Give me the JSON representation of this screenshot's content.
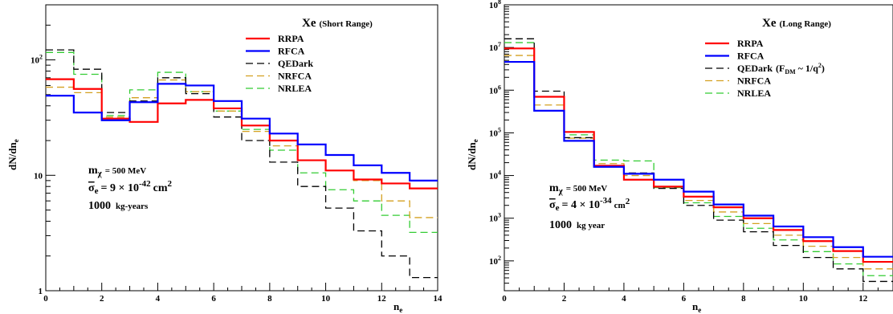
{
  "chart_data": [
    {
      "type": "line",
      "title": "Xe",
      "title_suffix": "(Short Range)",
      "xlabel": "n",
      "xlabel_sub": "e",
      "ylabel": "dN/dn",
      "ylabel_sub": "e",
      "xlim": [
        0,
        14
      ],
      "ylim": [
        1,
        300
      ],
      "yscale": "log",
      "x_ticks": [
        0,
        2,
        4,
        6,
        8,
        10,
        12,
        14
      ],
      "y_ticks": [
        {
          "value": 1,
          "base": "1",
          "exp": ""
        },
        {
          "value": 10,
          "base": "10",
          "exp": ""
        },
        {
          "value": 100,
          "base": "10",
          "exp": "2"
        }
      ],
      "legend_position": "top-right",
      "annotation": {
        "mass_label": "m",
        "mass_sub": "χ",
        "mass_value": "= 500 MeV",
        "sigma_label": "σ",
        "sigma_sub": "e",
        "sigma_value": "= 9 × 10",
        "sigma_exp": "-42",
        "sigma_unit": "cm",
        "sigma_unit_exp": "2",
        "exposure": "1000",
        "exposure_unit": "kg-years"
      },
      "edges": [
        0,
        1,
        2,
        3,
        4,
        5,
        6,
        7,
        8,
        9,
        10,
        11,
        12,
        13,
        14
      ],
      "series": [
        {
          "name": "RRPA",
          "color": "#ff0000",
          "dash": "",
          "width": 2.2,
          "values": [
            68,
            56,
            31,
            29,
            42,
            45,
            38,
            27,
            20,
            13.5,
            11,
            9.2,
            8.5,
            7.7
          ]
        },
        {
          "name": "RFCA",
          "color": "#0000ff",
          "dash": "",
          "width": 2.2,
          "values": [
            49,
            35,
            30,
            43,
            62,
            60,
            44,
            31,
            23,
            18.5,
            15,
            12.2,
            10.5,
            9
          ]
        },
        {
          "name": "QEDark",
          "color": "#000000",
          "dash": "9,5",
          "width": 1.3,
          "values": [
            122,
            83,
            35,
            44,
            70,
            51,
            32,
            20,
            13,
            8,
            5.2,
            3.3,
            2,
            1.3
          ]
        },
        {
          "name": "NRFCA",
          "color": "#d4a020",
          "dash": "9,5",
          "width": 1.3,
          "values": [
            58,
            52,
            32,
            47,
            67,
            53,
            36,
            24,
            18,
            13.5,
            11,
            9,
            6,
            4.3
          ]
        },
        {
          "name": "NRLEA",
          "color": "#33cc33",
          "dash": "9,5",
          "width": 1.3,
          "values": [
            116,
            75,
            33,
            55,
            78,
            53,
            36,
            25,
            16.5,
            10.5,
            7.5,
            6,
            4.5,
            3.2
          ]
        }
      ]
    },
    {
      "type": "line",
      "title": "Xe",
      "title_suffix": "(Long Range)",
      "xlabel": "n",
      "xlabel_sub": "e",
      "ylabel": "dN/dn",
      "ylabel_sub": "e",
      "xlim": [
        0,
        13
      ],
      "ylim": [
        20,
        100000000
      ],
      "yscale": "log",
      "x_ticks": [
        0,
        2,
        4,
        6,
        8,
        10,
        12
      ],
      "y_ticks": [
        {
          "value": 100,
          "base": "10",
          "exp": "2"
        },
        {
          "value": 1000,
          "base": "10",
          "exp": "3"
        },
        {
          "value": 10000,
          "base": "10",
          "exp": "4"
        },
        {
          "value": 100000,
          "base": "10",
          "exp": "5"
        },
        {
          "value": 1000000,
          "base": "10",
          "exp": "6"
        },
        {
          "value": 10000000,
          "base": "10",
          "exp": "7"
        },
        {
          "value": 100000000,
          "base": "10",
          "exp": "8"
        }
      ],
      "legend_position": "top-right",
      "annotation": {
        "mass_label": "m",
        "mass_sub": "χ",
        "mass_value": "= 500 MeV",
        "sigma_label": "σ",
        "sigma_sub": "e",
        "sigma_value": "= 4 × 10",
        "sigma_exp": "-34",
        "sigma_unit": "cm",
        "sigma_unit_exp": "2",
        "exposure": "1000",
        "exposure_unit": "kg year"
      },
      "qedark_legend_suffix": "(F",
      "qedark_legend_sub": "DM",
      "qedark_legend_tail": "~ 1/q",
      "qedark_legend_exp": "2",
      "qedark_legend_close": ")",
      "edges": [
        0,
        1,
        2,
        3,
        4,
        5,
        6,
        7,
        8,
        9,
        10,
        11,
        12,
        13
      ],
      "series": [
        {
          "name": "RRPA",
          "color": "#ff0000",
          "dash": "",
          "width": 2.2,
          "values": [
            9500000,
            700000,
            105000,
            17000,
            8000,
            5500,
            3200,
            1800,
            1000,
            530,
            290,
            170,
            95
          ]
        },
        {
          "name": "RFCA",
          "color": "#0000ff",
          "dash": "",
          "width": 2.2,
          "values": [
            4600000,
            330000,
            65000,
            16000,
            11000,
            8000,
            4200,
            2100,
            1150,
            640,
            360,
            210,
            125
          ]
        },
        {
          "name": "QEDark",
          "color": "#000000",
          "dash": "9,5",
          "width": 1.3,
          "values": [
            16000000,
            950000,
            77000,
            16000,
            11500,
            5000,
            2000,
            900,
            480,
            230,
            120,
            65,
            33
          ]
        },
        {
          "name": "NRFCA",
          "color": "#d4a020",
          "dash": "9,5",
          "width": 1.3,
          "values": [
            6500000,
            450000,
            75000,
            19000,
            10000,
            5500,
            2600,
            1400,
            750,
            400,
            220,
            120,
            65
          ]
        },
        {
          "name": "NRLEA",
          "color": "#33cc33",
          "dash": "9,5",
          "width": 1.3,
          "values": [
            13000000,
            700000,
            90000,
            23000,
            22000,
            5200,
            2300,
            1100,
            580,
            310,
            165,
            85,
            45
          ]
        }
      ]
    }
  ]
}
